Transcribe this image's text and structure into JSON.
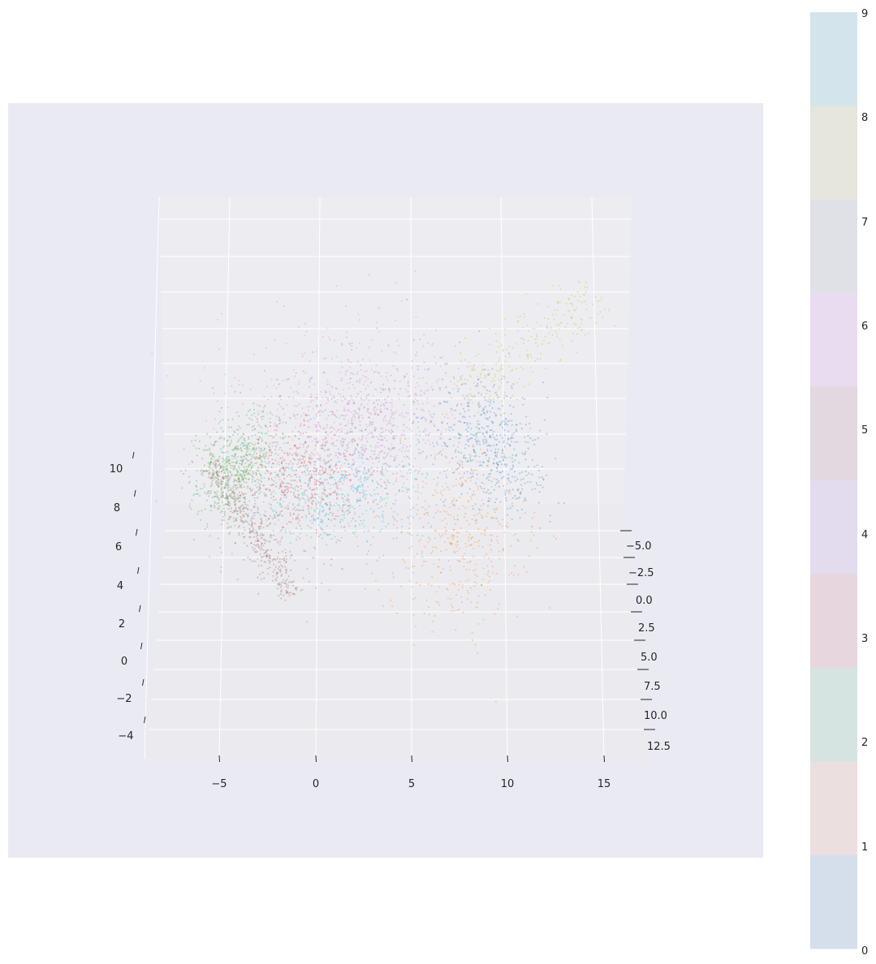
{
  "chart_data": {
    "type": "scatter",
    "title": "",
    "projection": "3d",
    "x_ticks": [
      "−5",
      "0",
      "5",
      "10",
      "15"
    ],
    "y_ticks": [
      "−5.0",
      "−2.5",
      "0.0",
      "2.5",
      "5.0",
      "7.5",
      "10.0",
      "12.5"
    ],
    "z_ticks": [
      "10",
      "8",
      "6",
      "4",
      "2",
      "0",
      "−2",
      "−4"
    ],
    "xlim": [
      -8,
      17
    ],
    "ylim": [
      -6,
      13
    ],
    "zlim": [
      -5,
      11
    ],
    "grid": true,
    "colorbar": {
      "labels": [
        "9",
        "8",
        "7",
        "6",
        "5",
        "4",
        "3",
        "2",
        "1",
        "0"
      ],
      "colors": [
        "#d3e4ec",
        "#e6e5de",
        "#e0e1e6",
        "#eadcf0",
        "#e2d8e0",
        "#e2dcee",
        "#e8d6df",
        "#d5e3e1",
        "#ecdfe0",
        "#d5dfeb"
      ]
    },
    "clusters": [
      {
        "label": "0",
        "color": "#1f77b4",
        "n": 520,
        "cx": 605,
        "cy": 548,
        "sx": 30,
        "sy": 48,
        "rot": -0.3
      },
      {
        "label": "1",
        "color": "#ff7f0e",
        "n": 460,
        "cx": 565,
        "cy": 660,
        "sx": 40,
        "sy": 58,
        "rot": 0.1
      },
      {
        "label": "2",
        "color": "#2ca02c",
        "n": 520,
        "cx": 290,
        "cy": 575,
        "sx": 22,
        "sy": 34,
        "rot": 0.5
      },
      {
        "label": "3",
        "color": "#d62728",
        "n": 420,
        "cx": 370,
        "cy": 590,
        "sx": 38,
        "sy": 36,
        "rot": 0.2
      },
      {
        "label": "4",
        "color": "#9467bd",
        "n": 360,
        "cx": 460,
        "cy": 535,
        "sx": 50,
        "sy": 45,
        "rot": 0.0
      },
      {
        "label": "5",
        "color": "#8c564b",
        "n": 420,
        "cx": 290,
        "cy": 620,
        "sx": 12,
        "sy": 60,
        "rot": -0.55
      },
      {
        "label": "6",
        "color": "#e377c2",
        "n": 700,
        "cx": 440,
        "cy": 510,
        "sx": 70,
        "sy": 50,
        "rot": 0.0
      },
      {
        "label": "7",
        "color": "#7f7f7f",
        "n": 180,
        "cx": 330,
        "cy": 620,
        "sx": 45,
        "sy": 55,
        "rot": -0.5
      },
      {
        "label": "8",
        "color": "#bcbd22",
        "n": 260,
        "cx": 620,
        "cy": 450,
        "sx": 70,
        "sy": 40,
        "rot": -0.65
      },
      {
        "label": "9",
        "color": "#17becf",
        "n": 520,
        "cx": 410,
        "cy": 610,
        "sx": 55,
        "sy": 35,
        "rot": 0.0
      }
    ]
  }
}
